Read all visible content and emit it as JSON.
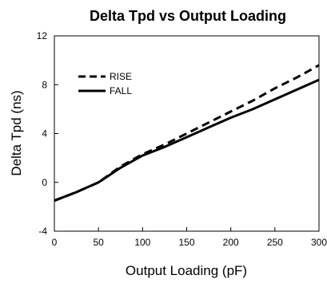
{
  "chart_data": {
    "type": "line",
    "title": "Delta Tpd vs Output Loading",
    "xlabel": "Output Loading (pF)",
    "ylabel": "Delta Tpd (ns)",
    "xlim": [
      0,
      300
    ],
    "ylim": [
      -4,
      12
    ],
    "x_ticks": [
      0,
      50,
      100,
      150,
      200,
      250,
      300
    ],
    "y_ticks": [
      -4,
      0,
      4,
      8,
      12
    ],
    "x_tick_labels": [
      "0",
      "50",
      "100",
      "150",
      "200",
      "250",
      "300"
    ],
    "y_tick_labels": [
      "-4",
      "0",
      "4",
      "8",
      "12"
    ],
    "grid": false,
    "legend_position": "top-left",
    "series": [
      {
        "name": "RISE",
        "style": "dashed",
        "color": "#000000",
        "x": [
          0,
          25,
          50,
          75,
          100,
          125,
          150,
          175,
          200,
          225,
          250,
          275,
          300
        ],
        "y": [
          -1.5,
          -0.8,
          0.0,
          1.3,
          2.3,
          3.1,
          4.0,
          4.9,
          5.8,
          6.7,
          7.7,
          8.6,
          9.6
        ]
      },
      {
        "name": "FALL",
        "style": "solid",
        "color": "#000000",
        "x": [
          0,
          25,
          50,
          75,
          100,
          125,
          150,
          175,
          200,
          225,
          250,
          275,
          300
        ],
        "y": [
          -1.5,
          -0.8,
          0.0,
          1.2,
          2.2,
          2.9,
          3.7,
          4.5,
          5.3,
          6.0,
          6.8,
          7.6,
          8.4
        ]
      }
    ]
  }
}
